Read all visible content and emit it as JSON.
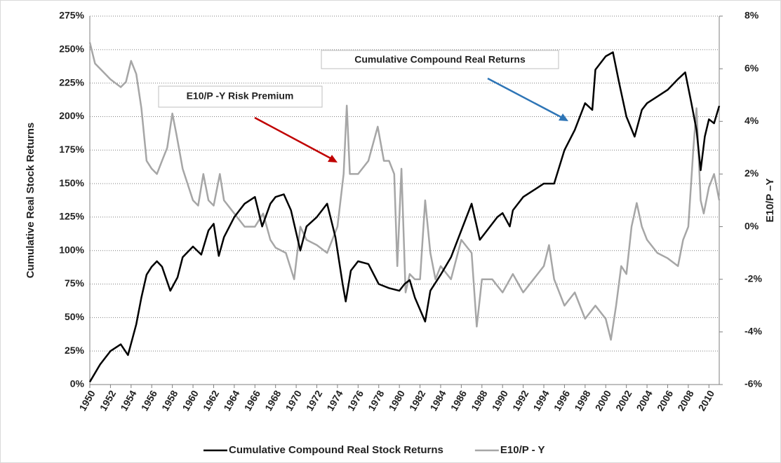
{
  "chart_data": {
    "type": "line",
    "annotations": [
      "Cumulative Compound Real Returns",
      "E10/P -Y Risk Premium"
    ],
    "ylabel": "Cumulative Real Stock Returns",
    "y2label": "E10/P –Y",
    "xlim": [
      1950,
      2011
    ],
    "xticks": [
      1950,
      1952,
      1954,
      1956,
      1958,
      1960,
      1962,
      1964,
      1966,
      1968,
      1970,
      1972,
      1974,
      1976,
      1978,
      1980,
      1982,
      1984,
      1986,
      1988,
      1990,
      1992,
      1994,
      1996,
      1998,
      2000,
      2002,
      2004,
      2006,
      2008,
      2010
    ],
    "ylim": [
      0,
      275
    ],
    "yticks": [
      {
        "value": 0,
        "label": "0%"
      },
      {
        "value": 25,
        "label": "25%"
      },
      {
        "value": 50,
        "label": "50%"
      },
      {
        "value": 75,
        "label": "75%"
      },
      {
        "value": 100,
        "label": "100%"
      },
      {
        "value": 125,
        "label": "125%"
      },
      {
        "value": 150,
        "label": "150%"
      },
      {
        "value": 175,
        "label": "175%"
      },
      {
        "value": 200,
        "label": "200%"
      },
      {
        "value": 225,
        "label": "225%"
      },
      {
        "value": 250,
        "label": "250%"
      },
      {
        "value": 275,
        "label": "275%"
      }
    ],
    "y2lim": [
      -6,
      8
    ],
    "y2ticks": [
      {
        "value": -6,
        "label": "-6%"
      },
      {
        "value": -4,
        "label": "-4%"
      },
      {
        "value": -2,
        "label": "-2%"
      },
      {
        "value": 0,
        "label": "0%"
      },
      {
        "value": 2,
        "label": "2%"
      },
      {
        "value": 4,
        "label": "4%"
      },
      {
        "value": 6,
        "label": "6%"
      },
      {
        "value": 8,
        "label": "8%"
      }
    ],
    "grid": true,
    "legend": "bottom",
    "series": [
      {
        "name": "Cumulative Compound Real Stock Returns",
        "color": "#000000",
        "x": [
          1950,
          1951,
          1952,
          1953,
          1953.7,
          1954.5,
          1955,
          1955.5,
          1956,
          1956.5,
          1957,
          1957.8,
          1958.5,
          1959,
          1960,
          1960.8,
          1961.5,
          1962,
          1962.5,
          1963,
          1964,
          1965,
          1966,
          1966.7,
          1967.5,
          1968,
          1968.8,
          1969.5,
          1970.4,
          1971,
          1972,
          1973,
          1973.8,
          1974.5,
          1974.8,
          1975.3,
          1976,
          1977,
          1978,
          1979,
          1980,
          1980.5,
          1981,
          1981.5,
          1982.5,
          1983,
          1984,
          1985,
          1986,
          1987,
          1987.8,
          1988.5,
          1989.5,
          1990,
          1990.7,
          1991,
          1992,
          1993,
          1994,
          1995,
          1996,
          1997,
          1998,
          1998.7,
          1999,
          2000,
          2000.7,
          2001.3,
          2002,
          2002.8,
          2003.5,
          2004,
          2005,
          2006,
          2007,
          2007.7,
          2008.3,
          2008.8,
          2009.2,
          2009.6,
          2010,
          2010.5,
          2011
        ],
        "values": [
          2,
          15,
          25,
          30,
          22,
          45,
          65,
          82,
          88,
          92,
          88,
          70,
          80,
          95,
          103,
          97,
          115,
          120,
          96,
          110,
          125,
          135,
          140,
          118,
          135,
          140,
          142,
          130,
          100,
          118,
          125,
          135,
          110,
          75,
          62,
          85,
          92,
          90,
          75,
          72,
          70,
          75,
          78,
          65,
          47,
          70,
          82,
          95,
          115,
          135,
          108,
          115,
          125,
          128,
          118,
          130,
          140,
          145,
          150,
          150,
          175,
          190,
          210,
          205,
          235,
          245,
          248,
          225,
          200,
          185,
          205,
          210,
          215,
          220,
          228,
          233,
          210,
          190,
          160,
          185,
          198,
          195,
          208
        ]
      },
      {
        "name": "E10/P - Y",
        "color": "#a6a6a6",
        "axis": "y2",
        "x": [
          1950,
          1950.5,
          1951,
          1952,
          1953,
          1953.5,
          1954,
          1954.5,
          1955,
          1955.5,
          1956,
          1956.5,
          1957,
          1957.5,
          1958,
          1958.4,
          1959,
          1960,
          1960.5,
          1961,
          1961.5,
          1962,
          1962.6,
          1963,
          1964,
          1965,
          1966,
          1966.8,
          1967.5,
          1968,
          1969,
          1969.8,
          1970.4,
          1971,
          1972,
          1973,
          1974,
          1974.6,
          1974.9,
          1975.2,
          1976,
          1977,
          1977.9,
          1978.5,
          1979,
          1979.5,
          1979.8,
          1980.2,
          1980.6,
          1981,
          1981.5,
          1982,
          1982.5,
          1983,
          1983.5,
          1984,
          1985,
          1986,
          1987,
          1987.5,
          1988,
          1989,
          1990,
          1991,
          1992,
          1993,
          1994,
          1994.5,
          1995,
          1996,
          1997,
          1998,
          1999,
          2000,
          2000.5,
          2001,
          2001.5,
          2002,
          2002.5,
          2003,
          2003.5,
          2004,
          2005,
          2006,
          2007,
          2007.5,
          2008,
          2008.5,
          2008.8,
          2009.2,
          2009.5,
          2010,
          2010.5,
          2011
        ],
        "values": [
          7,
          6.2,
          6,
          5.6,
          5.3,
          5.5,
          6.3,
          5.8,
          4.5,
          2.5,
          2.2,
          2,
          2.5,
          3,
          4.3,
          3.5,
          2.2,
          1,
          0.8,
          2,
          1,
          0.8,
          2,
          1,
          0.5,
          0,
          0,
          0.5,
          -0.5,
          -0.8,
          -1,
          -2,
          0,
          -0.5,
          -0.7,
          -1,
          0,
          2,
          4.6,
          2,
          2,
          2.5,
          3.8,
          2.5,
          2.5,
          2,
          -1.5,
          2.2,
          -2.5,
          -1.8,
          -2,
          -2,
          1,
          -1,
          -2,
          -1.5,
          -2,
          -0.5,
          -1,
          -3.8,
          -2,
          -2,
          -2.5,
          -1.8,
          -2.5,
          -2,
          -1.5,
          -0.7,
          -2,
          -3,
          -2.5,
          -3.5,
          -3,
          -3.5,
          -4.3,
          -3,
          -1.5,
          -1.8,
          0,
          0.9,
          0,
          -0.5,
          -1,
          -1.2,
          -1.5,
          -0.5,
          0,
          3,
          4.5,
          1,
          0.5,
          1.5,
          2,
          1
        ]
      }
    ]
  }
}
